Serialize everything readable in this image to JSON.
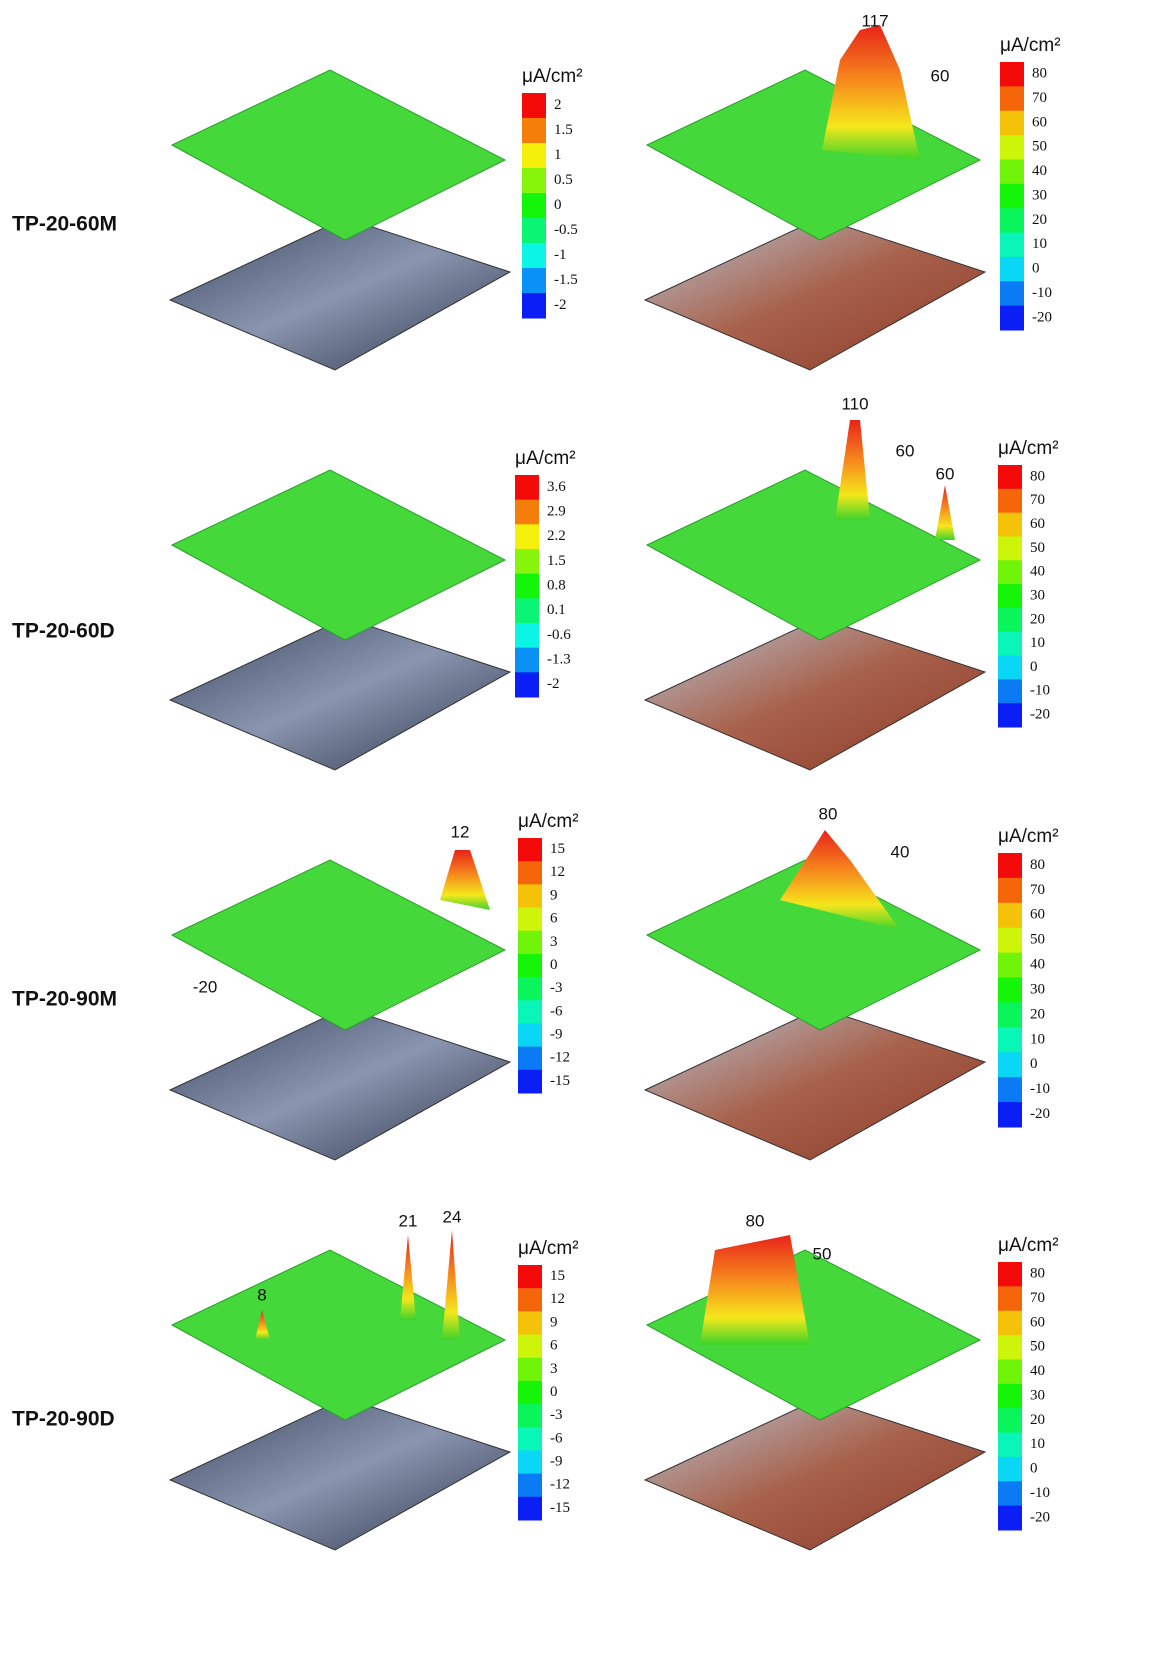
{
  "rows": [
    {
      "label": "TP-20-60M",
      "panels": [
        {
          "unit": "μA/cm²",
          "ticks": [
            2,
            1.5,
            1,
            0.5,
            0,
            -0.5,
            -1,
            -1.5,
            -2
          ],
          "annotations": []
        },
        {
          "unit": "μA/cm²",
          "ticks": [
            80,
            70,
            60,
            50,
            40,
            30,
            20,
            10,
            0,
            -10,
            -20
          ],
          "annotations": [
            117,
            60
          ]
        }
      ]
    },
    {
      "label": "TP-20-60D",
      "panels": [
        {
          "unit": "μA/cm²",
          "ticks": [
            3.6,
            2.9,
            2.2,
            1.5,
            0.8,
            0.1,
            -0.6,
            -1.3,
            -2
          ],
          "annotations": []
        },
        {
          "unit": "μA/cm²",
          "ticks": [
            80,
            70,
            60,
            50,
            40,
            30,
            20,
            10,
            0,
            -10,
            -20
          ],
          "annotations": [
            110,
            60,
            60
          ]
        }
      ]
    },
    {
      "label": "TP-20-90M",
      "panels": [
        {
          "unit": "μA/cm²",
          "ticks": [
            15,
            12,
            9,
            6,
            3,
            0,
            -3,
            -6,
            -9,
            -12,
            -15
          ],
          "annotations": [
            12,
            -20
          ]
        },
        {
          "unit": "μA/cm²",
          "ticks": [
            80,
            70,
            60,
            50,
            40,
            30,
            20,
            10,
            0,
            -10,
            -20
          ],
          "annotations": [
            80,
            40
          ]
        }
      ]
    },
    {
      "label": "TP-20-90D",
      "panels": [
        {
          "unit": "μA/cm²",
          "ticks": [
            15,
            12,
            9,
            6,
            3,
            0,
            -3,
            -6,
            -9,
            -12,
            -15
          ],
          "annotations": [
            8,
            21,
            24
          ]
        },
        {
          "unit": "μA/cm²",
          "ticks": [
            80,
            70,
            60,
            50,
            40,
            30,
            20,
            10,
            0,
            -10,
            -20
          ],
          "annotations": [
            80,
            50
          ]
        }
      ]
    }
  ]
}
